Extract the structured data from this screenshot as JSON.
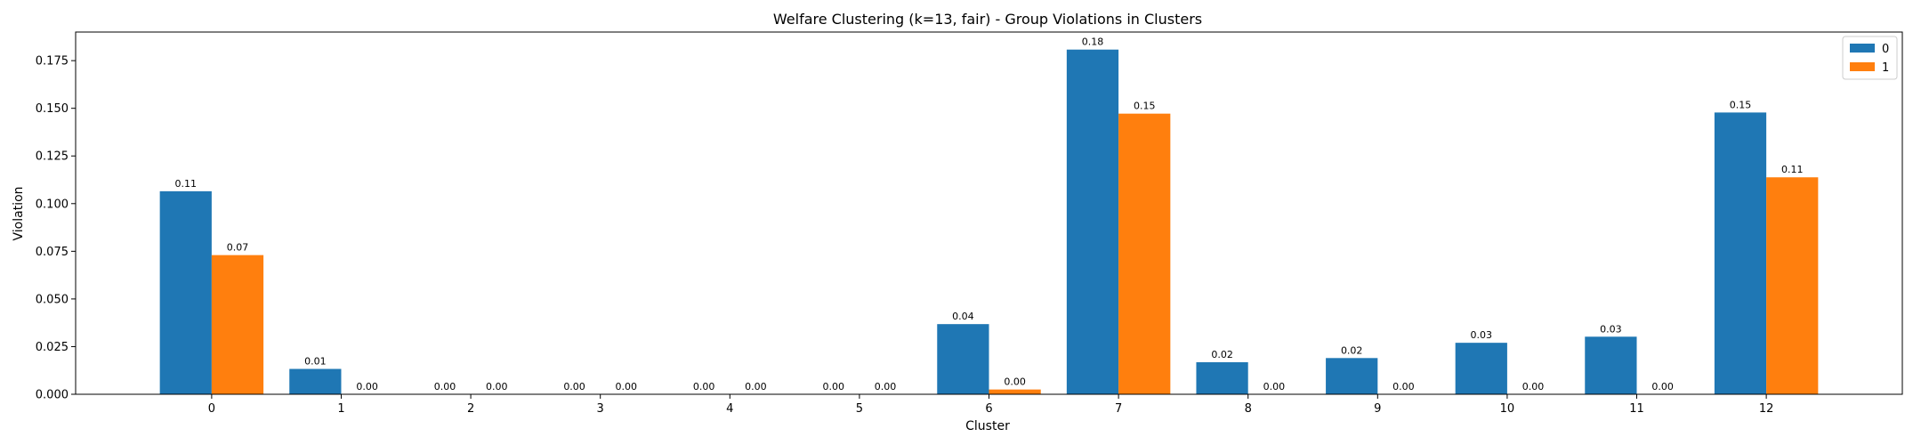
{
  "chart_data": {
    "type": "bar",
    "title": "Welfare Clustering (k=13, fair) - Group Violations in Clusters",
    "xlabel": "Cluster",
    "ylabel": "Violation",
    "categories": [
      "0",
      "1",
      "2",
      "3",
      "4",
      "5",
      "6",
      "7",
      "8",
      "9",
      "10",
      "11",
      "12"
    ],
    "series": [
      {
        "name": "0",
        "color": "#1f77b4",
        "values": [
          0.1065,
          0.0133,
          0.0,
          0.0,
          0.0,
          0.0,
          0.0368,
          0.1808,
          0.0168,
          0.019,
          0.027,
          0.0302,
          0.1478
        ],
        "labels": [
          "0.11",
          "0.01",
          "0.00",
          "0.00",
          "0.00",
          "0.00",
          "0.04",
          "0.18",
          "0.02",
          "0.02",
          "0.03",
          "0.03",
          "0.15"
        ]
      },
      {
        "name": "1",
        "color": "#ff7f0e",
        "values": [
          0.073,
          0.0,
          0.0,
          0.0,
          0.0,
          0.0,
          0.0025,
          0.1472,
          0.0,
          0.0,
          0.0,
          0.0,
          0.1138
        ],
        "labels": [
          "0.07",
          "0.00",
          "0.00",
          "0.00",
          "0.00",
          "0.00",
          "0.00",
          "0.15",
          "0.00",
          "0.00",
          "0.00",
          "0.00",
          "0.11"
        ]
      }
    ],
    "ylim": [
      0,
      0.19
    ],
    "yticks": [
      0.0,
      0.025,
      0.05,
      0.075,
      0.1,
      0.125,
      0.15,
      0.175
    ],
    "ytick_labels": [
      "0.000",
      "0.025",
      "0.050",
      "0.075",
      "0.100",
      "0.125",
      "0.150",
      "0.175"
    ],
    "grid": false,
    "legend": "top-right"
  }
}
